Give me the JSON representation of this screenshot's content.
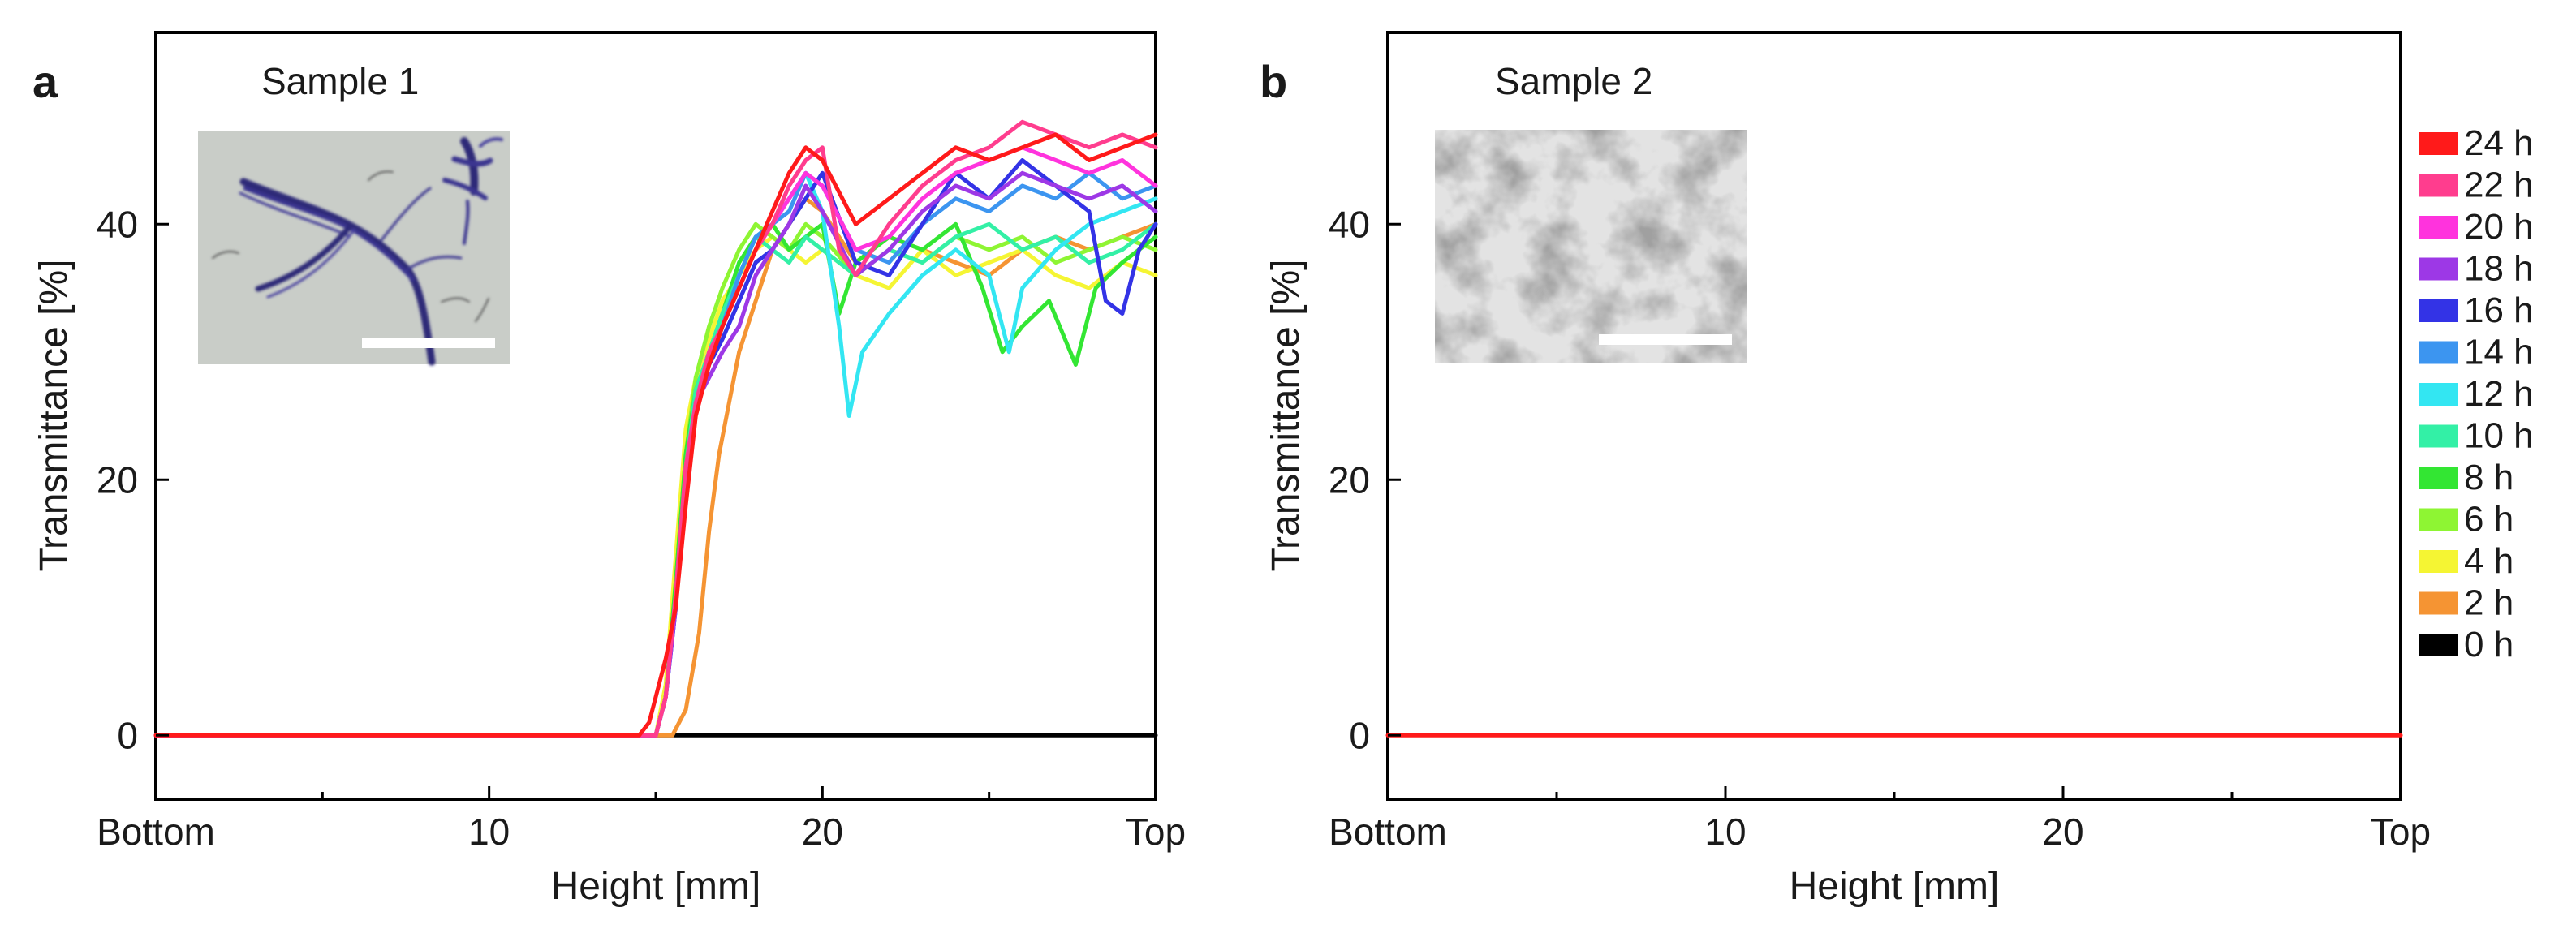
{
  "figure": {
    "domain": "Chart"
  },
  "legend": [
    {
      "label": "24 h",
      "color": "#ff1a1a"
    },
    {
      "label": "22 h",
      "color": "#ff3d8e"
    },
    {
      "label": "20 h",
      "color": "#ff33dd"
    },
    {
      "label": "18 h",
      "color": "#9d38e6"
    },
    {
      "label": "16 h",
      "color": "#3333e6"
    },
    {
      "label": "14 h",
      "color": "#3c95f0"
    },
    {
      "label": "12 h",
      "color": "#33e6f2"
    },
    {
      "label": "10 h",
      "color": "#33f0a6"
    },
    {
      "label": "8 h",
      "color": "#33e633"
    },
    {
      "label": "6 h",
      "color": "#8ef533"
    },
    {
      "label": "4 h",
      "color": "#f5f533"
    },
    {
      "label": "2 h",
      "color": "#f59433"
    },
    {
      "label": "0 h",
      "color": "#000000"
    }
  ],
  "chart_data": [
    {
      "type": "line",
      "panel": "a",
      "title": "Sample 1",
      "xlabel": "Height [mm]",
      "ylabel": "Transmittance [%]",
      "xlim": [
        0,
        30
      ],
      "ylim": [
        -5,
        55
      ],
      "xticks": [
        {
          "value": 0,
          "label": "Bottom"
        },
        {
          "value": 10,
          "label": "10"
        },
        {
          "value": 20,
          "label": "20"
        },
        {
          "value": 30,
          "label": "Top"
        }
      ],
      "yticks": [
        {
          "value": 0,
          "label": "0"
        },
        {
          "value": 20,
          "label": "20"
        },
        {
          "value": 40,
          "label": "40"
        }
      ],
      "series": [
        {
          "name": "0 h",
          "x": [
            0,
            30
          ],
          "y": [
            0,
            0
          ]
        },
        {
          "name": "2 h",
          "x": [
            0,
            15.5,
            15.9,
            16.3,
            16.6,
            16.9,
            17.2,
            17.5,
            18,
            18.5,
            19,
            19.5,
            20,
            21,
            22,
            23,
            24,
            25,
            26,
            27,
            28,
            29,
            30
          ],
          "y": [
            0,
            0,
            2,
            8,
            16,
            22,
            26,
            30,
            34,
            38,
            40,
            42,
            41,
            37,
            39,
            38,
            37,
            36,
            38,
            39,
            38,
            39,
            40
          ]
        },
        {
          "name": "4 h",
          "x": [
            0,
            15.0,
            15.3,
            15.6,
            15.9,
            16.2,
            16.6,
            17,
            17.5,
            18,
            18.5,
            19,
            19.5,
            20,
            21,
            22,
            23,
            24,
            25,
            26,
            27,
            28,
            29,
            30
          ],
          "y": [
            0,
            0,
            4,
            14,
            24,
            28,
            31,
            34,
            36,
            38,
            39,
            38,
            37,
            38,
            36,
            35,
            38,
            36,
            37,
            38,
            36,
            35,
            37,
            36
          ]
        },
        {
          "name": "6 h",
          "x": [
            0,
            15.0,
            15.3,
            15.6,
            15.9,
            16.2,
            16.6,
            17,
            17.5,
            18,
            18.5,
            19,
            19.5,
            20,
            21,
            22,
            23,
            24,
            25,
            26,
            27,
            28,
            29,
            30
          ],
          "y": [
            0,
            0,
            3,
            12,
            22,
            28,
            32,
            35,
            38,
            40,
            39,
            38,
            40,
            39,
            36,
            38,
            37,
            39,
            38,
            39,
            37,
            38,
            39,
            38
          ]
        },
        {
          "name": "8 h",
          "x": [
            0,
            15.0,
            15.3,
            15.6,
            15.9,
            16.2,
            16.6,
            17,
            17.5,
            18,
            18.5,
            19,
            19.5,
            20,
            20.5,
            21,
            22,
            23,
            24,
            24.8,
            25.4,
            26,
            26.8,
            27.6,
            28.2,
            29,
            30
          ],
          "y": [
            0,
            0,
            3,
            12,
            22,
            27,
            30,
            33,
            37,
            39,
            40,
            38,
            39,
            40,
            33,
            37,
            39,
            38,
            40,
            35,
            30,
            32,
            34,
            29,
            35,
            37,
            39
          ]
        },
        {
          "name": "10 h",
          "x": [
            0,
            15.0,
            15.3,
            15.6,
            15.9,
            16.2,
            16.6,
            17,
            17.5,
            18,
            18.5,
            19,
            19.5,
            20,
            21,
            22,
            23,
            24,
            25,
            26,
            27,
            28,
            29,
            30
          ],
          "y": [
            0,
            0,
            3,
            11,
            21,
            27,
            30,
            33,
            36,
            39,
            38,
            37,
            39,
            38,
            36,
            38,
            37,
            39,
            40,
            38,
            39,
            37,
            38,
            40
          ]
        },
        {
          "name": "12 h",
          "x": [
            0,
            15.0,
            15.3,
            15.6,
            15.9,
            16.2,
            16.6,
            17,
            17.5,
            18,
            18.5,
            19,
            19.5,
            20,
            20.5,
            20.8,
            21.2,
            22,
            23,
            24,
            25,
            25.6,
            26,
            27,
            28,
            29,
            30
          ],
          "y": [
            0,
            0,
            3,
            10,
            20,
            26,
            29,
            32,
            36,
            39,
            40,
            42,
            44,
            41,
            32,
            25,
            30,
            33,
            36,
            38,
            36,
            30,
            35,
            38,
            40,
            41,
            42
          ]
        },
        {
          "name": "14 h",
          "x": [
            0,
            15.0,
            15.3,
            15.6,
            15.9,
            16.2,
            16.6,
            17,
            17.5,
            18,
            18.5,
            19,
            19.5,
            20,
            21,
            22,
            23,
            24,
            25,
            26,
            27,
            28,
            29,
            30
          ],
          "y": [
            0,
            0,
            3,
            10,
            20,
            26,
            29,
            32,
            36,
            39,
            40,
            41,
            44,
            43,
            38,
            37,
            40,
            42,
            41,
            43,
            42,
            44,
            42,
            43
          ]
        },
        {
          "name": "16 h",
          "x": [
            0,
            15.0,
            15.3,
            15.6,
            15.9,
            16.2,
            16.6,
            17,
            17.5,
            18,
            18.5,
            19,
            19.5,
            20,
            21,
            22,
            23,
            24,
            25,
            26,
            27,
            28,
            28.5,
            29,
            29.5,
            30
          ],
          "y": [
            0,
            0,
            3,
            10,
            20,
            26,
            29,
            31,
            34,
            37,
            38,
            40,
            42,
            44,
            37,
            36,
            40,
            44,
            42,
            45,
            43,
            41,
            34,
            33,
            38,
            40
          ]
        },
        {
          "name": "18 h",
          "x": [
            0,
            15.0,
            15.3,
            15.6,
            15.9,
            16.2,
            16.6,
            17,
            17.5,
            18,
            18.5,
            19,
            19.5,
            20,
            21,
            22,
            23,
            24,
            25,
            26,
            27,
            28,
            29,
            30
          ],
          "y": [
            0,
            0,
            3,
            10,
            20,
            26,
            28,
            30,
            32,
            36,
            38,
            40,
            43,
            41,
            36,
            38,
            41,
            43,
            42,
            44,
            43,
            42,
            43,
            41
          ]
        },
        {
          "name": "20 h",
          "x": [
            0,
            15.0,
            15.3,
            15.6,
            15.9,
            16.2,
            16.6,
            17,
            17.5,
            18,
            18.5,
            19,
            19.5,
            20,
            21,
            22,
            23,
            24,
            25,
            26,
            27,
            28,
            29,
            30
          ],
          "y": [
            0,
            0,
            3,
            11,
            21,
            26,
            30,
            32,
            35,
            38,
            40,
            42,
            44,
            43,
            38,
            39,
            42,
            44,
            45,
            46,
            45,
            44,
            45,
            43
          ]
        },
        {
          "name": "22 h",
          "x": [
            0,
            15.0,
            15.3,
            15.6,
            15.9,
            16.2,
            16.6,
            17,
            17.5,
            18,
            18.5,
            19,
            19.5,
            20,
            20.5,
            21,
            22,
            23,
            24,
            25,
            26,
            27,
            28,
            29,
            30
          ],
          "y": [
            0,
            0,
            3,
            11,
            21,
            26,
            30,
            32,
            35,
            38,
            40,
            43,
            45,
            46,
            38,
            36,
            40,
            43,
            45,
            46,
            48,
            47,
            46,
            47,
            46
          ]
        },
        {
          "name": "24 h",
          "x": [
            0,
            14.5,
            14.8,
            15.0,
            15.3,
            15.6,
            15.9,
            16.2,
            16.6,
            17,
            17.5,
            18,
            18.5,
            19,
            19.5,
            20,
            21,
            22,
            23,
            24,
            25,
            26,
            27,
            28,
            29,
            30
          ],
          "y": [
            0,
            0,
            1,
            3,
            6,
            10,
            18,
            25,
            29,
            32,
            35,
            38,
            41,
            44,
            46,
            45,
            40,
            42,
            44,
            46,
            45,
            46,
            47,
            45,
            46,
            47
          ]
        }
      ]
    },
    {
      "type": "line",
      "panel": "b",
      "title": "Sample 2",
      "xlabel": "Height [mm]",
      "ylabel": "Transmittance [%]",
      "xlim": [
        0,
        30
      ],
      "ylim": [
        -5,
        55
      ],
      "xticks": [
        {
          "value": 0,
          "label": "Bottom"
        },
        {
          "value": 10,
          "label": "10"
        },
        {
          "value": 20,
          "label": "20"
        },
        {
          "value": 30,
          "label": "Top"
        }
      ],
      "yticks": [
        {
          "value": 0,
          "label": "0"
        },
        {
          "value": 20,
          "label": "20"
        },
        {
          "value": 40,
          "label": "40"
        }
      ],
      "series": [
        {
          "name": "24 h",
          "x": [
            0,
            30
          ],
          "y": [
            0,
            0
          ]
        }
      ]
    }
  ]
}
